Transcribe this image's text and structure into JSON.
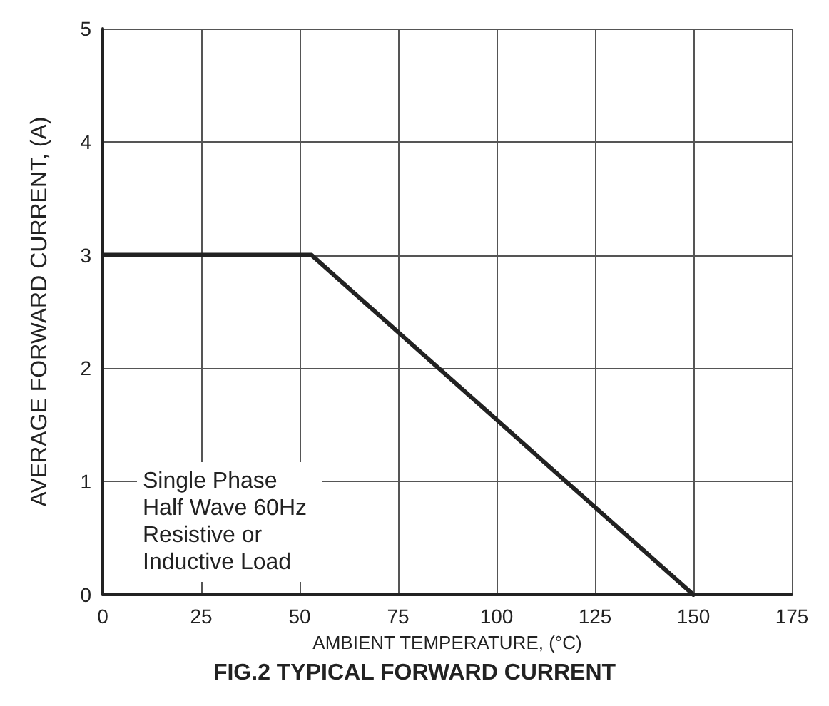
{
  "chart_data": {
    "type": "line",
    "title": "FIG.2 TYPICAL FORWARD CURRENT",
    "xlabel": "AMBIENT TEMPERATURE, (°C)",
    "ylabel": "AVERAGE FORWARD CURRENT, (A)",
    "x": [
      0,
      53,
      150
    ],
    "series": [
      {
        "color": "#222222",
        "values": [
          3,
          3,
          0
        ]
      }
    ],
    "xlim": [
      0,
      175
    ],
    "xticks": [
      0,
      25,
      50,
      75,
      100,
      125,
      150,
      175
    ],
    "ylim": [
      0,
      5
    ],
    "yticks": [
      0,
      1,
      2,
      3,
      4,
      5
    ],
    "grid": true,
    "marker": "none",
    "line_style": "solid",
    "annotations": [
      "Single Phase\nHalf Wave 60Hz\nResistive or\nInductive Load"
    ]
  }
}
